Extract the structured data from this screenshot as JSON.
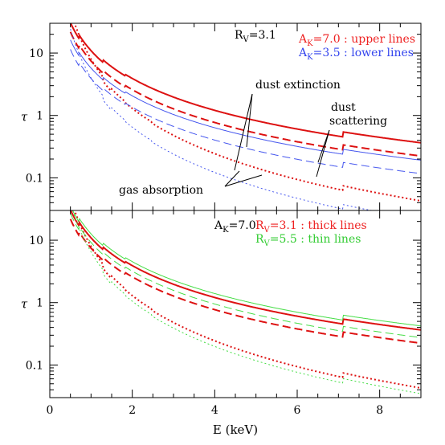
{
  "chart_data": [
    {
      "type": "line",
      "panel": "top",
      "x_axis": {
        "label": "",
        "range": [
          0,
          9
        ],
        "ticks": [
          0,
          2,
          4,
          6,
          8
        ],
        "tick_labels_shown": false
      },
      "y_axis": {
        "label": "τ",
        "scale": "log",
        "range": [
          0.03,
          30
        ],
        "ticks": [
          0.1,
          1,
          10
        ],
        "tick_labels": [
          "0.1",
          "1",
          "10"
        ]
      },
      "text_labels": [
        {
          "id": "rv",
          "text": "R",
          "sub": "V",
          "after": "=3.1",
          "color": "#000000"
        },
        {
          "id": "ak70",
          "text": "A",
          "sub": "K",
          "after": "=7.0 : upper lines",
          "color": "#ee2222"
        },
        {
          "id": "ak35",
          "text": "A",
          "sub": "K",
          "after": "=3.5 : lower lines",
          "color": "#3344ee"
        },
        {
          "id": "dust-extinction",
          "text": "dust extinction",
          "color": "#000000"
        },
        {
          "id": "dust-scattering-1",
          "text": "dust",
          "color": "#000000"
        },
        {
          "id": "dust-scattering-2",
          "text": "scattering",
          "color": "#000000"
        },
        {
          "id": "gas-absorption",
          "text": "gas absorption",
          "color": "#000000"
        }
      ],
      "series": [
        {
          "group": "A_K=7.0",
          "component": "dust extinction",
          "color": "#dd1111",
          "style": "solid",
          "width": 2.0,
          "tau_at_1keV": 9.5
        },
        {
          "group": "A_K=7.0",
          "component": "dust scattering",
          "color": "#dd1111",
          "style": "dashed",
          "width": 2.0,
          "tau_at_1keV": 6.5
        },
        {
          "group": "A_K=7.0",
          "component": "gas absorption",
          "color": "#dd1111",
          "style": "dotted",
          "width": 2.0,
          "tau_at_1keV": 8.0
        },
        {
          "group": "A_K=3.5",
          "component": "dust extinction",
          "color": "#4455ee",
          "style": "solid",
          "width": 1.0,
          "tau_at_1keV": 5.0
        },
        {
          "group": "A_K=3.5",
          "component": "dust scattering",
          "color": "#4455ee",
          "style": "dashed",
          "width": 1.0,
          "tau_at_1keV": 3.4
        },
        {
          "group": "A_K=3.5",
          "component": "gas absorption",
          "color": "#4455ee",
          "style": "dotted",
          "width": 1.0,
          "tau_at_1keV": 4.0
        }
      ]
    },
    {
      "type": "line",
      "panel": "bottom",
      "x_axis": {
        "label": "E (keV)",
        "range": [
          0,
          9
        ],
        "ticks": [
          0,
          2,
          4,
          6,
          8
        ],
        "tick_labels": [
          "0",
          "2",
          "4",
          "6",
          "8"
        ]
      },
      "y_axis": {
        "label": "τ",
        "scale": "log",
        "range": [
          0.03,
          30
        ],
        "ticks": [
          0.1,
          1,
          10
        ],
        "tick_labels": [
          "0.1",
          "1",
          "10"
        ]
      },
      "text_labels": [
        {
          "id": "ak",
          "text": "A",
          "sub": "K",
          "after": "=7.0",
          "color": "#000000"
        },
        {
          "id": "rv31",
          "text": "R",
          "sub": "V",
          "after": "=3.1 : thick lines",
          "color": "#ee2222"
        },
        {
          "id": "rv55",
          "text": "R",
          "sub": "V",
          "after": "=5.5 : thin lines",
          "color": "#33cc33"
        }
      ],
      "series": [
        {
          "group": "R_V=3.1",
          "component": "dust extinction",
          "color": "#dd1111",
          "style": "solid",
          "width": 2.0,
          "tau_at_1keV": 9.5
        },
        {
          "group": "R_V=3.1",
          "component": "dust scattering",
          "color": "#dd1111",
          "style": "dashed",
          "width": 2.0,
          "tau_at_1keV": 6.5
        },
        {
          "group": "R_V=3.1",
          "component": "gas absorption",
          "color": "#dd1111",
          "style": "dotted",
          "width": 2.0,
          "tau_at_1keV": 8.0
        },
        {
          "group": "R_V=5.5",
          "component": "dust extinction",
          "color": "#44dd44",
          "style": "solid",
          "width": 1.0,
          "tau_at_1keV": 11.0
        },
        {
          "group": "R_V=5.5",
          "component": "dust scattering",
          "color": "#44dd44",
          "style": "dashed",
          "width": 1.0,
          "tau_at_1keV": 8.0
        },
        {
          "group": "R_V=5.5",
          "component": "gas absorption",
          "color": "#44dd44",
          "style": "dotted",
          "width": 1.0,
          "tau_at_1keV": 6.5
        }
      ]
    }
  ]
}
